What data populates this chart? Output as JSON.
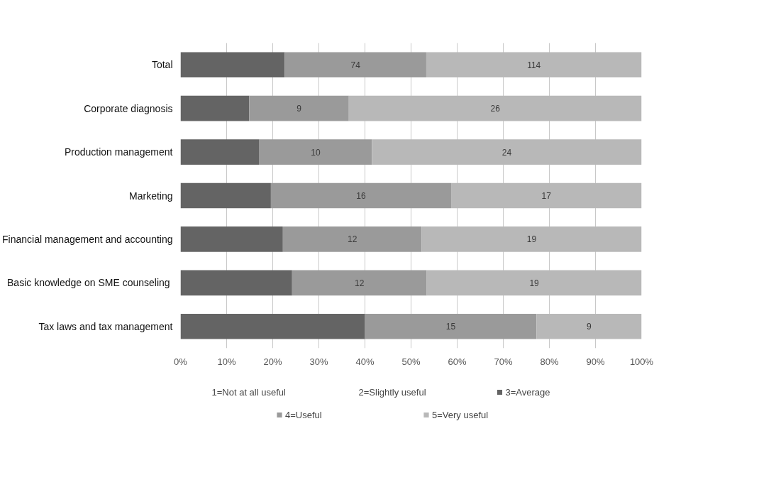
{
  "chart_data": {
    "type": "bar",
    "orientation": "horizontal",
    "stacked": true,
    "categories": [
      "Total",
      "Corporate diagnosis",
      "Production management",
      "Marketing",
      "Financial management and accounting",
      "Basic knowledge  on SME counseling",
      "Tax laws and tax management"
    ],
    "series": [
      {
        "name": "1=Not at all useful",
        "color": "#3f3f3f",
        "values": [
          null,
          null,
          null,
          null,
          null,
          null,
          null
        ]
      },
      {
        "name": "2=Slightly useful",
        "color": "#555555",
        "values": [
          null,
          null,
          null,
          null,
          null,
          null,
          null
        ]
      },
      {
        "name": "3=Average",
        "color": "#646464",
        "values": [
          22.6,
          14.9,
          17.1,
          19.6,
          22.2,
          24.2,
          40.0
        ]
      },
      {
        "name": "4=Useful",
        "color": "#9a9a9a",
        "values": [
          30.7,
          21.6,
          24.4,
          39.1,
          30.1,
          29.2,
          37.2
        ]
      },
      {
        "name": "5=Very useful",
        "color": "#b8b8b8",
        "values": [
          46.7,
          63.5,
          58.5,
          41.3,
          47.7,
          46.6,
          22.8
        ]
      }
    ],
    "annotations": [
      "74",
      "114",
      "9",
      "26",
      "10",
      "24",
      "16",
      "17",
      "12",
      "19",
      "12",
      "19",
      "15",
      "9"
    ],
    "xlim": [
      0,
      100
    ],
    "xticks": [
      {
        "value": 0,
        "label": "0%"
      },
      {
        "value": 10,
        "label": "10%"
      },
      {
        "value": 20,
        "label": "20%"
      },
      {
        "value": 30,
        "label": "30%"
      },
      {
        "value": 40,
        "label": "40%"
      },
      {
        "value": 50,
        "label": "50%"
      },
      {
        "value": 60,
        "label": "60%"
      },
      {
        "value": 70,
        "label": "70%"
      },
      {
        "value": 80,
        "label": "80%"
      },
      {
        "value": 90,
        "label": "90%"
      },
      {
        "value": 100,
        "label": "100%"
      }
    ],
    "grid": "x",
    "legend": "bottom"
  }
}
